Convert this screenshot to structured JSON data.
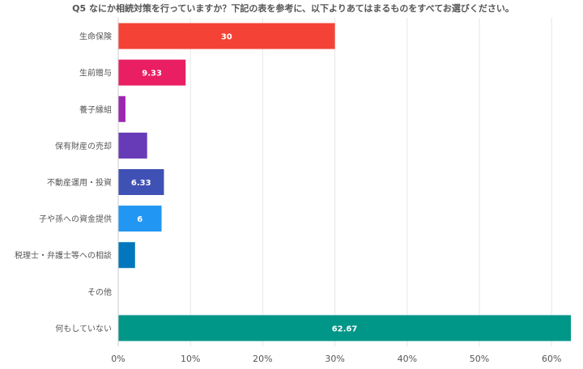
{
  "chart_data": {
    "type": "bar",
    "orientation": "horizontal",
    "title": "Q5 なにか相続対策を行っていますか？下記の表を参考に、以下よりあてはまるものをすべてお選びください。",
    "categories": [
      "生命保険",
      "生前贈与",
      "養子縁組",
      "保有財産の売却",
      "不動産運用・投資",
      "子や孫への資金提供",
      "税理士・弁護士等への相談",
      "その他",
      "何もしていない"
    ],
    "values": [
      30,
      9.33,
      1,
      4,
      6.33,
      6,
      2.33,
      0,
      62.67
    ],
    "data_labels": [
      "30",
      "9.33",
      "",
      "",
      "6.33",
      "6",
      "",
      "",
      "62.67"
    ],
    "colors": [
      "#f44336",
      "#e91e63",
      "#9c27b0",
      "#673ab7",
      "#3f51b5",
      "#2196f3",
      "#0277bd",
      "#00838f",
      "#009688"
    ],
    "xlim": [
      0,
      63
    ],
    "xticks": [
      0,
      10,
      20,
      30,
      40,
      50,
      60
    ],
    "xtick_labels": [
      "0%",
      "10%",
      "20%",
      "30%",
      "40%",
      "50%",
      "60%"
    ],
    "grid": true,
    "legend": "none"
  }
}
